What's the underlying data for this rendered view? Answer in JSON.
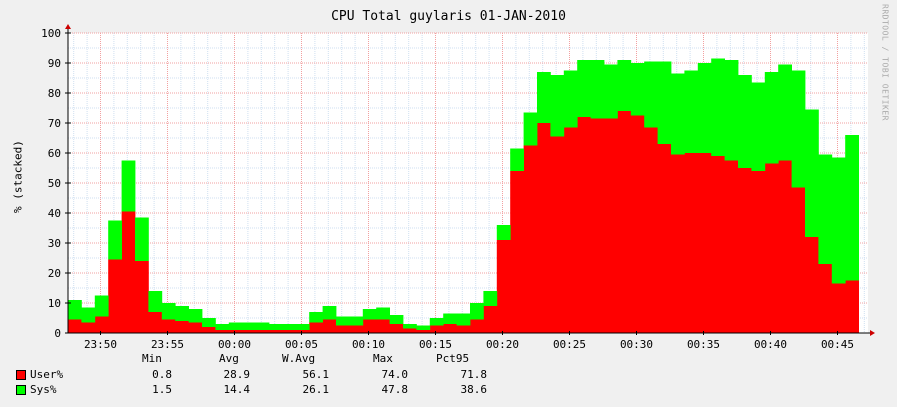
{
  "chart_data": {
    "type": "area",
    "stacked": true,
    "title": "CPU Total guylaris 01-JAN-2010",
    "ylabel": "% (stacked)",
    "ylim": [
      0,
      100
    ],
    "yticks": [
      0,
      10,
      20,
      30,
      40,
      50,
      60,
      70,
      80,
      90,
      100
    ],
    "xticks": [
      "23:50",
      "23:55",
      "00:00",
      "00:05",
      "00:10",
      "00:15",
      "00:20",
      "00:25",
      "00:30",
      "00:35",
      "00:40",
      "00:45"
    ],
    "grid": true,
    "x_interval_minutes": 1,
    "series": [
      {
        "name": "User%",
        "color": "#ff0000",
        "values": [
          4.5,
          3.5,
          5.5,
          24.5,
          40.5,
          24,
          7,
          4.5,
          4,
          3.5,
          2,
          1,
          1,
          1,
          1,
          1,
          1,
          1,
          3.5,
          4.5,
          2.5,
          2.5,
          4.5,
          4.5,
          3,
          1.5,
          1,
          2.5,
          3,
          2.5,
          4.5,
          9,
          31,
          54,
          62.5,
          70,
          65.5,
          68.5,
          72,
          71.5,
          71.5,
          74,
          72.5,
          68.5,
          63,
          59.5,
          60,
          60,
          59,
          57.5,
          55,
          54,
          56.5,
          57.5,
          48.5,
          32,
          23,
          16.5,
          17.5
        ]
      },
      {
        "name": "Sys%",
        "color": "#00ff00",
        "values": [
          6.5,
          5,
          7,
          13,
          17,
          14.5,
          7,
          5.5,
          5,
          4.5,
          3,
          2,
          2.5,
          2.5,
          2.5,
          2,
          2,
          2,
          3.5,
          4.5,
          3,
          3,
          3.5,
          4,
          3,
          1.5,
          1.5,
          2.5,
          3.5,
          4,
          5.5,
          5,
          5,
          7.5,
          11,
          17,
          20.5,
          19,
          19,
          19.5,
          18,
          17,
          17.5,
          22,
          27.5,
          27,
          27.5,
          30,
          32.5,
          33.5,
          31,
          29.5,
          30.5,
          32,
          39,
          42.5,
          36.5,
          42,
          48.5
        ]
      }
    ],
    "stats_headers": [
      "Min",
      "Avg",
      "W.Avg",
      "Max",
      "Pct95"
    ],
    "stats": [
      {
        "name": "User%",
        "values": [
          "0.8",
          "28.9",
          "56.1",
          "74.0",
          "71.8"
        ]
      },
      {
        "name": "Sys%",
        "values": [
          "1.5",
          "14.4",
          "26.1",
          "47.8",
          "38.6"
        ]
      }
    ]
  },
  "watermark": "RRDTOOL / TOBI OETIKER",
  "colors": {
    "background": "#f0f0f0",
    "canvas": "#ffffff",
    "grid_major": "#f2a0a0",
    "grid_minor": "#cfdff0",
    "axis": "#000000",
    "arrow": "#cc0000"
  }
}
